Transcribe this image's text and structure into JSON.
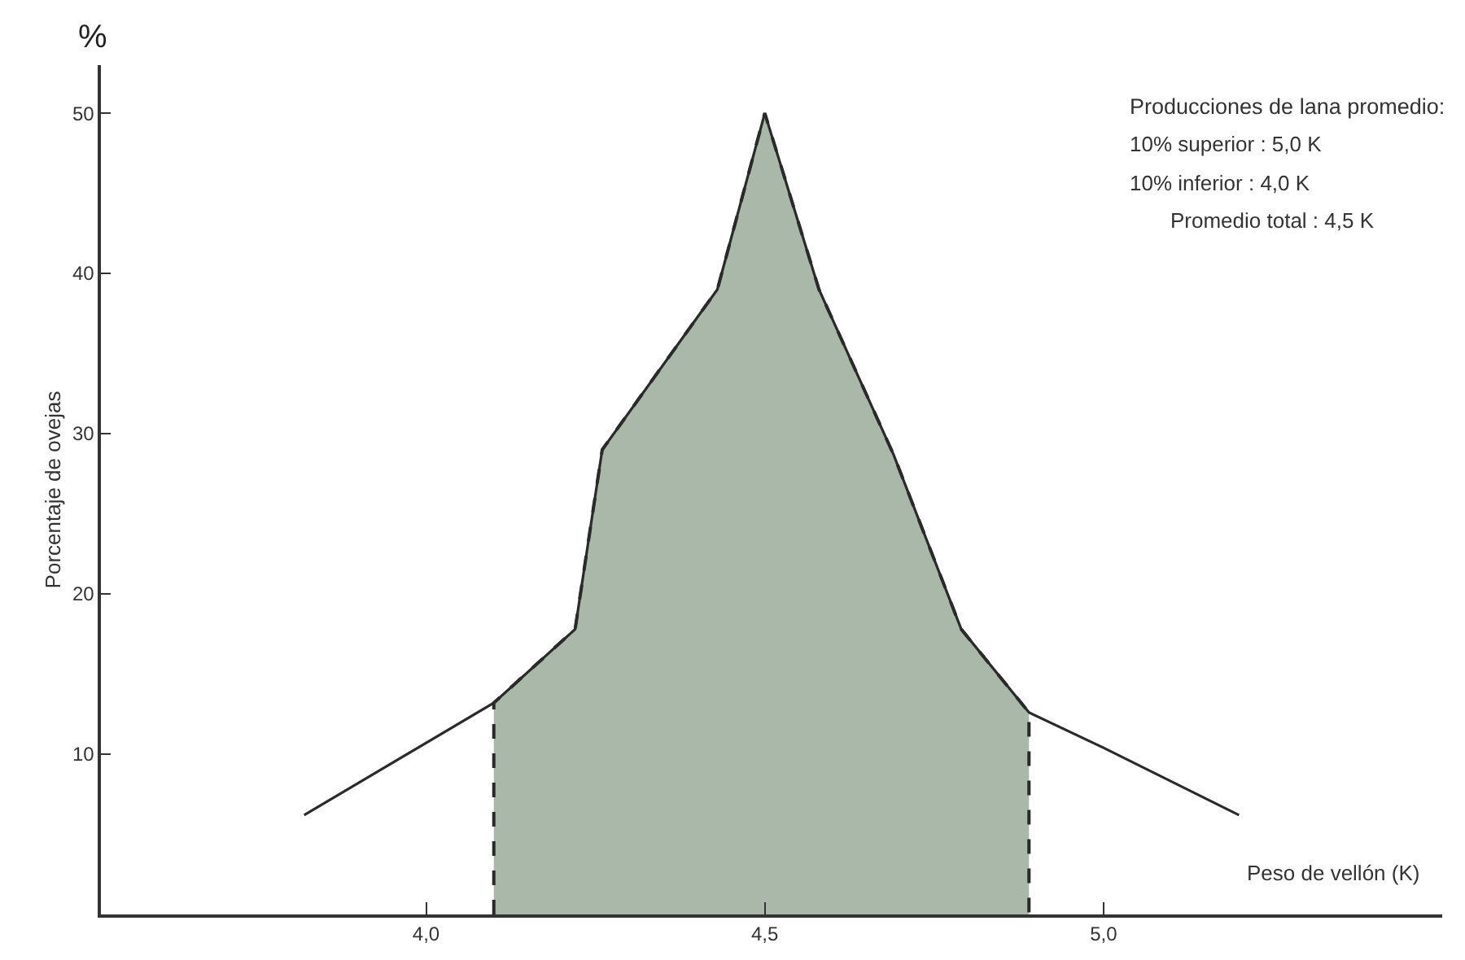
{
  "chart_data": {
    "type": "line",
    "xlabel": "Peso de vellón (K)",
    "ylabel": "Porcentaje de ovejas",
    "xlim": [
      3.52,
      5.5
    ],
    "ylim": [
      0,
      53
    ],
    "xticks": [
      {
        "value": 4.0,
        "label": "4,0"
      },
      {
        "value": 4.5,
        "label": "4,5"
      },
      {
        "value": 5.0,
        "label": "5,0"
      }
    ],
    "yticks": [
      10,
      20,
      30,
      40,
      50
    ],
    "grid": false,
    "series": [
      {
        "type": "area",
        "color": "#a9b8a8",
        "line_style": "dashed",
        "x": [
          4.1,
          4.1,
          4.22,
          4.26,
          4.43,
          4.5,
          4.58,
          4.69,
          4.79,
          4.89,
          4.89
        ],
        "values": [
          0,
          13.2,
          17.8,
          29,
          39,
          50,
          39,
          28.7,
          17.8,
          12.6,
          0
        ]
      },
      {
        "color": "#2a2a2a",
        "line_style": "solid",
        "x": [
          3.82,
          4.1,
          4.22,
          4.26,
          4.43,
          4.5,
          4.58,
          4.69,
          4.79,
          4.89,
          5.0,
          5.2
        ],
        "values": [
          6.2,
          13.2,
          17.8,
          29,
          39,
          50,
          39,
          28.7,
          17.8,
          12.6,
          10.4,
          6.2
        ]
      }
    ],
    "annotations": [
      "%",
      "Producciones de lana promedio:",
      "10% superior : 5,0 K",
      "10% inferior : 4,0 K",
      "Promedio total : 4,5 K"
    ]
  }
}
